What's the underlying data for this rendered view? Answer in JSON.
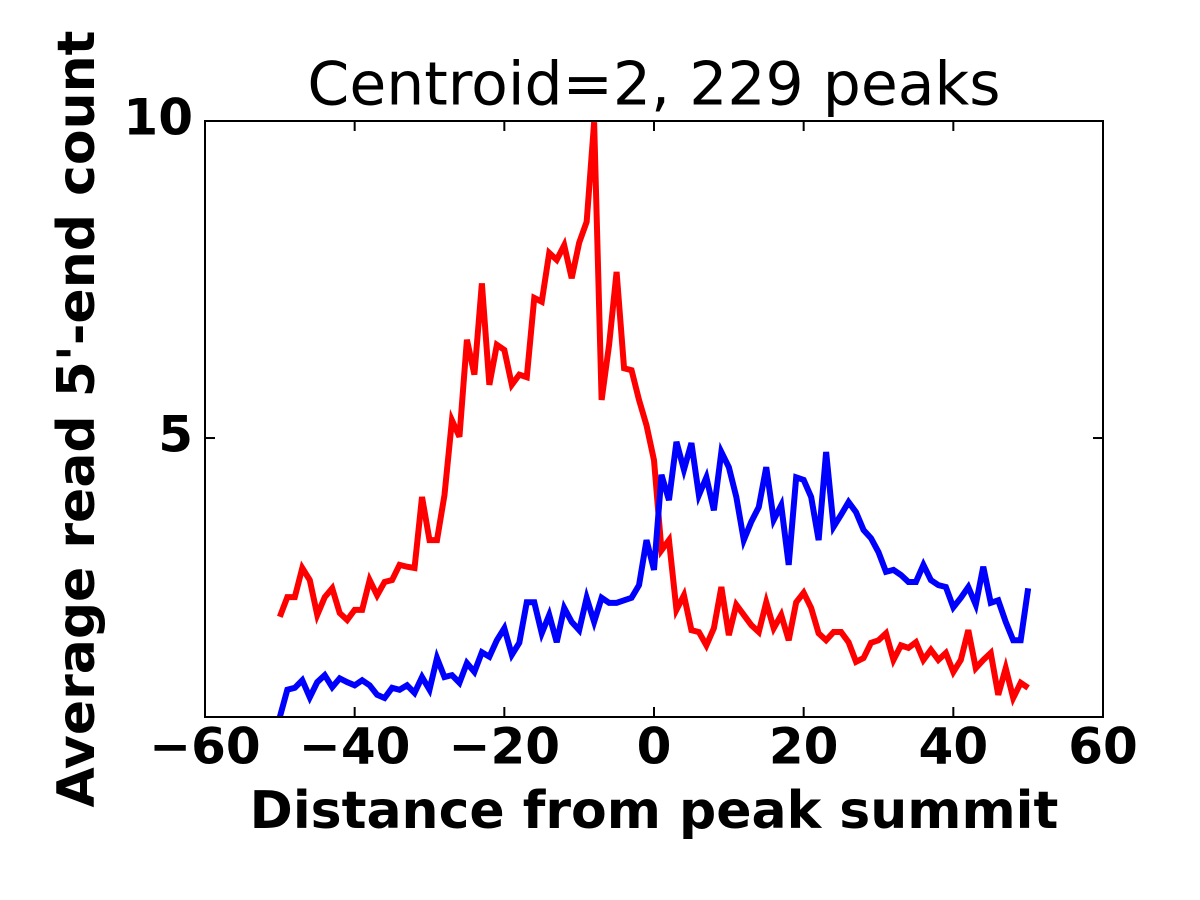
{
  "chart_data": {
    "type": "line",
    "title": "Centroid=2, 229 peaks",
    "xlabel": "Distance from peak summit",
    "ylabel": "Average read 5'-end count",
    "x": [
      -50,
      -49,
      -48,
      -47,
      -46,
      -45,
      -44,
      -43,
      -42,
      -41,
      -40,
      -39,
      -38,
      -37,
      -36,
      -35,
      -34,
      -33,
      -32,
      -31,
      -30,
      -29,
      -28,
      -27,
      -26,
      -25,
      -24,
      -23,
      -22,
      -21,
      -20,
      -19,
      -18,
      -17,
      -16,
      -15,
      -14,
      -13,
      -12,
      -11,
      -10,
      -9,
      -8,
      -7,
      -6,
      -5,
      -4,
      -3,
      -2,
      -1,
      0,
      1,
      2,
      3,
      4,
      5,
      6,
      7,
      8,
      9,
      10,
      11,
      12,
      13,
      14,
      15,
      16,
      17,
      18,
      19,
      20,
      21,
      22,
      23,
      24,
      25,
      26,
      27,
      28,
      29,
      30,
      31,
      32,
      33,
      34,
      35,
      36,
      37,
      38,
      39,
      40,
      41,
      42,
      43,
      44,
      45,
      46,
      47,
      48,
      49,
      50
    ],
    "series": [
      {
        "color": "#ff0000",
        "values": [
          2.18,
          2.49,
          2.49,
          2.95,
          2.76,
          2.21,
          2.49,
          2.63,
          2.24,
          2.13,
          2.29,
          2.29,
          2.76,
          2.52,
          2.73,
          2.76,
          3.0,
          2.97,
          2.95,
          4.07,
          3.39,
          3.39,
          4.1,
          5.28,
          5.02,
          6.55,
          6.0,
          7.44,
          5.84,
          6.47,
          6.39,
          5.84,
          6.0,
          5.96,
          7.21,
          7.15,
          7.92,
          7.81,
          8.04,
          7.52,
          8.08,
          8.41,
          9.98,
          5.6,
          6.47,
          7.62,
          6.1,
          6.07,
          5.6,
          5.2,
          4.65,
          3.23,
          3.39,
          2.29,
          2.52,
          1.97,
          1.94,
          1.73,
          2.0,
          2.65,
          1.89,
          2.37,
          2.21,
          2.05,
          1.94,
          2.41,
          2.0,
          2.21,
          1.81,
          2.41,
          2.56,
          2.32,
          1.92,
          1.81,
          1.94,
          1.94,
          1.78,
          1.47,
          1.53,
          1.77,
          1.81,
          1.92,
          1.5,
          1.73,
          1.69,
          1.78,
          1.5,
          1.66,
          1.5,
          1.61,
          1.31,
          1.5,
          1.97,
          1.37,
          1.5,
          1.61,
          0.95,
          1.37,
          0.9,
          1.14,
          1.06
        ]
      },
      {
        "color": "#0000ff",
        "values": [
          0.6,
          1.03,
          1.06,
          1.18,
          0.91,
          1.15,
          1.26,
          1.07,
          1.21,
          1.15,
          1.1,
          1.18,
          1.1,
          0.95,
          0.9,
          1.06,
          1.03,
          1.1,
          0.98,
          1.23,
          1.03,
          1.53,
          1.23,
          1.26,
          1.14,
          1.45,
          1.31,
          1.62,
          1.55,
          1.81,
          2.0,
          1.58,
          1.77,
          2.41,
          2.41,
          1.92,
          2.21,
          1.78,
          2.32,
          2.1,
          1.97,
          2.48,
          2.1,
          2.48,
          2.4,
          2.4,
          2.44,
          2.48,
          2.68,
          3.39,
          2.92,
          4.42,
          4.02,
          4.94,
          4.5,
          4.92,
          4.1,
          4.38,
          3.86,
          4.78,
          4.54,
          4.07,
          3.39,
          3.68,
          3.91,
          4.54,
          3.71,
          3.94,
          3.0,
          4.38,
          4.34,
          4.07,
          3.39,
          4.78,
          3.6,
          3.79,
          3.99,
          3.83,
          3.55,
          3.42,
          3.2,
          2.89,
          2.92,
          2.84,
          2.73,
          2.73,
          3.0,
          2.76,
          2.68,
          2.65,
          2.33,
          2.48,
          2.65,
          2.37,
          2.97,
          2.4,
          2.44,
          2.1,
          1.81,
          1.81,
          2.63
        ]
      }
    ],
    "xlim": [
      -60,
      60
    ],
    "xticks": [
      {
        "value": -60,
        "label": "−60"
      },
      {
        "value": -40,
        "label": "−40"
      },
      {
        "value": -20,
        "label": "−20"
      },
      0,
      20,
      40,
      60
    ],
    "ylim": [
      0.6,
      10
    ],
    "yticks": [
      5,
      10
    ]
  }
}
